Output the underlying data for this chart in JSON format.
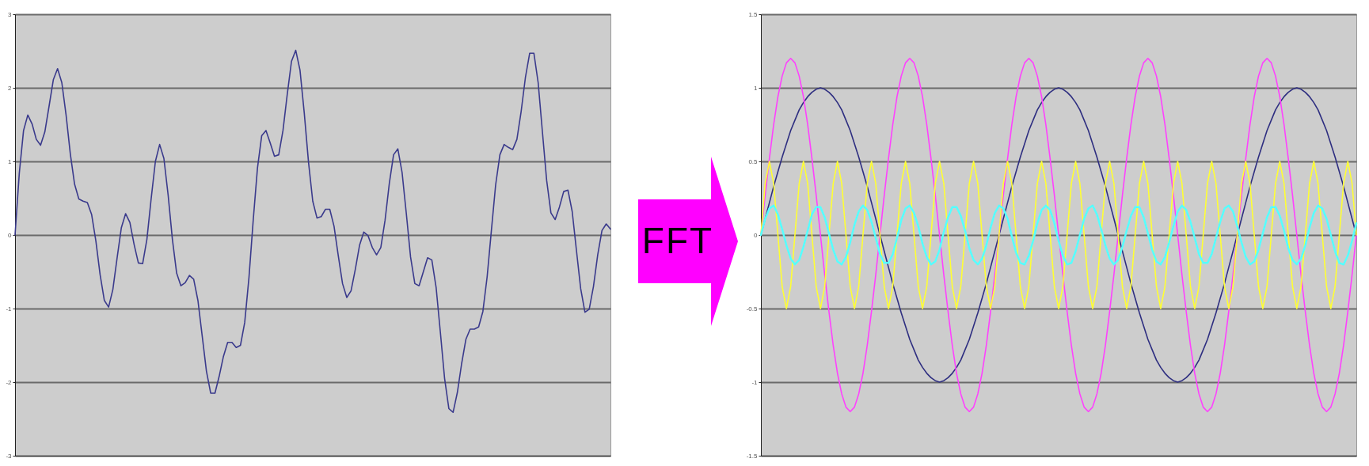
{
  "chart_data": [
    {
      "type": "line",
      "categories": [
        null,
        null,
        null,
        null,
        null,
        null,
        null,
        null,
        null,
        null,
        null,
        null,
        null,
        null,
        null,
        null,
        null,
        null,
        null,
        null,
        null,
        null,
        null,
        null,
        null,
        null,
        null,
        null,
        null,
        null,
        null,
        null,
        null,
        null,
        null,
        null,
        null,
        null,
        null,
        null,
        null,
        null,
        null,
        null,
        null,
        null,
        null,
        null,
        null,
        null,
        null,
        null,
        null,
        null,
        null,
        null,
        null,
        null,
        null,
        null,
        null,
        null,
        null,
        null,
        null,
        null,
        null,
        null,
        null,
        null,
        null,
        null,
        null,
        null,
        null,
        null,
        null,
        null,
        null,
        null,
        null,
        null,
        null,
        null,
        null,
        null,
        null,
        null,
        null,
        null,
        null,
        null,
        null,
        null,
        null,
        null,
        null,
        null,
        null,
        null,
        null,
        null,
        null,
        null,
        null,
        null,
        null,
        null,
        null,
        null,
        null,
        null,
        null,
        null,
        null,
        null,
        null,
        null,
        null,
        null,
        null,
        null,
        null,
        null,
        null,
        null,
        null,
        null,
        null,
        null,
        null,
        null,
        null,
        null,
        null,
        null,
        null,
        null,
        null,
        null,
        null
      ],
      "ylim": [
        -3,
        3
      ],
      "yticks": [
        -3,
        -2,
        -1,
        0,
        1,
        2,
        3
      ],
      "grid": "y",
      "annotations": [
        "FFT"
      ],
      "series": [
        {
          "color": "#3a3a8c",
          "values": [
            0,
            0.84,
            1.42,
            1.63,
            1.51,
            1.3,
            1.22,
            1.4,
            1.75,
            2.11,
            2.26,
            2.07,
            1.63,
            1.1,
            0.69,
            0.49,
            0.46,
            0.44,
            0.28,
            -0.08,
            -0.54,
            -0.89,
            -0.98,
            -0.74,
            -0.31,
            0.1,
            0.29,
            0.17,
            -0.13,
            -0.38,
            -0.39,
            -0.06,
            0.49,
            1,
            1.23,
            1.04,
            0.54,
            -0.06,
            -0.52,
            -0.69,
            -0.65,
            -0.55,
            -0.6,
            -0.89,
            -1.37,
            -1.85,
            -2.15,
            -2.15,
            -1.92,
            -1.65,
            -1.46,
            -1.46,
            -1.53,
            -1.5,
            -1.19,
            -0.58,
            0.2,
            0.91,
            1.35,
            1.42,
            1.25,
            1.07,
            1.09,
            1.42,
            1.91,
            2.36,
            2.51,
            2.24,
            1.66,
            0.99,
            0.46,
            0.23,
            0.25,
            0.35,
            0.35,
            0.12,
            -0.28,
            -0.66,
            -0.85,
            -0.76,
            -0.47,
            -0.14,
            0.04,
            -0.01,
            -0.17,
            -0.27,
            -0.17,
            0.2,
            0.7,
            1.09,
            1.17,
            0.85,
            0.29,
            -0.3,
            -0.66,
            -0.69,
            -0.5,
            -0.31,
            -0.34,
            -0.71,
            -1.32,
            -1.95,
            -2.36,
            -2.41,
            -2.14,
            -1.75,
            -1.42,
            -1.28,
            -1.28,
            -1.25,
            -1.04,
            -0.57,
            0.06,
            0.68,
            1.09,
            1.23,
            1.19,
            1.16,
            1.3,
            1.68,
            2.14,
            2.47,
            2.47,
            2.07,
            1.4,
            0.74,
            0.3,
            0.21,
            0.38,
            0.59,
            0.61,
            0.32,
            -0.21,
            -0.73,
            -1.05,
            -1.01,
            -0.7,
            -0.27,
            0.06,
            0.15,
            0.08
          ]
        }
      ]
    },
    {
      "type": "line",
      "categories": [
        null,
        null,
        null,
        null,
        null,
        null,
        null,
        null,
        null,
        null,
        null,
        null,
        null,
        null,
        null,
        null,
        null,
        null,
        null,
        null,
        null,
        null,
        null,
        null,
        null,
        null,
        null,
        null,
        null,
        null,
        null,
        null,
        null,
        null,
        null,
        null,
        null,
        null,
        null,
        null,
        null,
        null,
        null,
        null,
        null,
        null,
        null,
        null,
        null,
        null,
        null,
        null,
        null,
        null,
        null,
        null,
        null,
        null,
        null,
        null,
        null,
        null,
        null,
        null,
        null,
        null,
        null,
        null,
        null,
        null,
        null,
        null,
        null,
        null,
        null,
        null,
        null,
        null,
        null,
        null,
        null,
        null,
        null,
        null,
        null,
        null,
        null,
        null,
        null,
        null,
        null,
        null,
        null,
        null,
        null,
        null,
        null,
        null,
        null,
        null,
        null,
        null,
        null,
        null,
        null,
        null,
        null,
        null,
        null,
        null,
        null,
        null,
        null,
        null,
        null,
        null,
        null,
        null,
        null,
        null,
        null,
        null,
        null,
        null,
        null,
        null,
        null,
        null,
        null,
        null,
        null,
        null,
        null,
        null,
        null,
        null,
        null,
        null,
        null,
        null,
        null
      ],
      "ylim": [
        -1.5,
        1.5
      ],
      "yticks": [
        -1.5,
        -1,
        -0.5,
        0,
        0.5,
        1,
        1.5
      ],
      "grid": "y",
      "series": [
        {
          "color": "#2e2e80",
          "values": [
            0,
            0.11,
            0.22,
            0.33,
            0.43,
            0.53,
            0.62,
            0.71,
            0.78,
            0.85,
            0.9,
            0.94,
            0.97,
            0.99,
            1,
            0.99,
            0.97,
            0.94,
            0.9,
            0.85,
            0.78,
            0.71,
            0.62,
            0.53,
            0.43,
            0.33,
            0.22,
            0.11,
            0,
            -0.11,
            -0.22,
            -0.33,
            -0.43,
            -0.53,
            -0.62,
            -0.71,
            -0.78,
            -0.85,
            -0.9,
            -0.94,
            -0.97,
            -0.99,
            -1,
            -0.99,
            -0.97,
            -0.94,
            -0.9,
            -0.85,
            -0.78,
            -0.71,
            -0.62,
            -0.53,
            -0.43,
            -0.33,
            -0.22,
            -0.11,
            0,
            0.11,
            0.22,
            0.33,
            0.43,
            0.53,
            0.62,
            0.71,
            0.78,
            0.85,
            0.9,
            0.94,
            0.97,
            0.99,
            1,
            0.99,
            0.97,
            0.94,
            0.9,
            0.85,
            0.78,
            0.71,
            0.62,
            0.53,
            0.43,
            0.33,
            0.22,
            0.11,
            0,
            -0.11,
            -0.22,
            -0.33,
            -0.43,
            -0.53,
            -0.62,
            -0.71,
            -0.78,
            -0.85,
            -0.9,
            -0.94,
            -0.97,
            -0.99,
            -1,
            -0.99,
            -0.97,
            -0.94,
            -0.9,
            -0.85,
            -0.78,
            -0.71,
            -0.62,
            -0.53,
            -0.43,
            -0.33,
            -0.22,
            -0.11,
            0,
            0.11,
            0.22,
            0.33,
            0.43,
            0.53,
            0.62,
            0.71,
            0.78,
            0.85,
            0.9,
            0.94,
            0.97,
            0.99,
            1,
            0.99,
            0.97,
            0.94,
            0.9,
            0.85,
            0.78,
            0.71,
            0.62,
            0.53,
            0.43,
            0.33,
            0.22,
            0.11,
            0
          ]
        },
        {
          "color": "#ff40ff",
          "values": [
            0,
            0.27,
            0.52,
            0.75,
            0.94,
            1.08,
            1.17,
            1.2,
            1.17,
            1.08,
            0.94,
            0.75,
            0.52,
            0.27,
            0,
            -0.27,
            -0.52,
            -0.75,
            -0.94,
            -1.08,
            -1.17,
            -1.2,
            -1.17,
            -1.08,
            -0.94,
            -0.75,
            -0.52,
            -0.27,
            0,
            0.27,
            0.52,
            0.75,
            0.94,
            1.08,
            1.17,
            1.2,
            1.17,
            1.08,
            0.94,
            0.75,
            0.52,
            0.27,
            0,
            -0.27,
            -0.52,
            -0.75,
            -0.94,
            -1.08,
            -1.17,
            -1.2,
            -1.17,
            -1.08,
            -0.94,
            -0.75,
            -0.52,
            -0.27,
            0,
            0.27,
            0.52,
            0.75,
            0.94,
            1.08,
            1.17,
            1.2,
            1.17,
            1.08,
            0.94,
            0.75,
            0.52,
            0.27,
            0,
            -0.27,
            -0.52,
            -0.75,
            -0.94,
            -1.08,
            -1.17,
            -1.2,
            -1.17,
            -1.08,
            -0.94,
            -0.75,
            -0.52,
            -0.27,
            0,
            0.27,
            0.52,
            0.75,
            0.94,
            1.08,
            1.17,
            1.2,
            1.17,
            1.08,
            0.94,
            0.75,
            0.52,
            0.27,
            0,
            -0.27,
            -0.52,
            -0.75,
            -0.94,
            -1.08,
            -1.17,
            -1.2,
            -1.17,
            -1.08,
            -0.94,
            -0.75,
            -0.52,
            -0.27,
            0,
            0.27,
            0.52,
            0.75,
            0.94,
            1.08,
            1.17,
            1.2,
            1.17,
            1.08,
            0.94,
            0.75,
            0.52,
            0.27,
            0,
            -0.27,
            -0.52,
            -0.75,
            -0.94,
            -1.08,
            -1.17,
            -1.2,
            -1.17,
            -1.08,
            -0.94,
            -0.75,
            -0.52,
            -0.27,
            0
          ]
        },
        {
          "color": "#ffff33",
          "values": [
            0,
            0.35,
            0.5,
            0.35,
            0,
            -0.35,
            -0.5,
            -0.35,
            0,
            0.35,
            0.5,
            0.35,
            0,
            -0.35,
            -0.5,
            -0.35,
            0,
            0.35,
            0.5,
            0.35,
            0,
            -0.35,
            -0.5,
            -0.35,
            0,
            0.35,
            0.5,
            0.35,
            0,
            -0.35,
            -0.5,
            -0.35,
            0,
            0.35,
            0.5,
            0.35,
            0,
            -0.35,
            -0.5,
            -0.35,
            0,
            0.35,
            0.5,
            0.35,
            0,
            -0.35,
            -0.5,
            -0.35,
            0,
            0.35,
            0.5,
            0.35,
            0,
            -0.35,
            -0.5,
            -0.35,
            0,
            0.35,
            0.5,
            0.35,
            0,
            -0.35,
            -0.5,
            -0.35,
            0,
            0.35,
            0.5,
            0.35,
            0,
            -0.35,
            -0.5,
            -0.35,
            0,
            0.35,
            0.5,
            0.35,
            0,
            -0.35,
            -0.5,
            -0.35,
            0,
            0.35,
            0.5,
            0.35,
            0,
            -0.35,
            -0.5,
            -0.35,
            0,
            0.35,
            0.5,
            0.35,
            0,
            -0.35,
            -0.5,
            -0.35,
            0,
            0.35,
            0.5,
            0.35,
            0,
            -0.35,
            -0.5,
            -0.35,
            0,
            0.35,
            0.5,
            0.35,
            0,
            -0.35,
            -0.5,
            -0.35,
            0,
            0.35,
            0.5,
            0.35,
            0,
            -0.35,
            -0.5,
            -0.35,
            0,
            0.35,
            0.5,
            0.35,
            0,
            -0.35,
            -0.5,
            -0.35,
            0,
            0.35,
            0.5,
            0.35,
            0,
            -0.35,
            -0.5,
            -0.35,
            0,
            0.35,
            0.5,
            0.35,
            0
          ]
        },
        {
          "color": "#55ffff",
          "values": [
            0,
            0.11,
            0.18,
            0.2,
            0.14,
            0.04,
            -0.07,
            -0.16,
            -0.2,
            -0.17,
            -0.08,
            0.03,
            0.14,
            0.19,
            0.19,
            0.12,
            0.01,
            -0.1,
            -0.18,
            -0.2,
            -0.15,
            -0.05,
            0.07,
            0.16,
            0.2,
            0.17,
            0.09,
            -0.02,
            -0.13,
            -0.19,
            -0.19,
            -0.13,
            -0.02,
            0.1,
            0.18,
            0.2,
            0.15,
            0.06,
            -0.06,
            -0.15,
            -0.2,
            -0.18,
            -0.1,
            0.02,
            0.12,
            0.19,
            0.19,
            0.13,
            0.03,
            -0.09,
            -0.17,
            -0.2,
            -0.16,
            -0.07,
            0.05,
            0.15,
            0.2,
            0.18,
            0.11,
            -0.01,
            -0.12,
            -0.19,
            -0.2,
            -0.14,
            -0.04,
            0.08,
            0.17,
            0.2,
            0.17,
            0.08,
            -0.04,
            -0.14,
            -0.2,
            -0.19,
            -0.11,
            0,
            0.11,
            0.18,
            0.2,
            0.14,
            0.04,
            -0.07,
            -0.16,
            -0.2,
            -0.17,
            -0.08,
            0.03,
            0.13,
            0.19,
            0.19,
            0.12,
            0.01,
            -0.1,
            -0.18,
            -0.2,
            -0.15,
            -0.05,
            0.06,
            0.16,
            0.2,
            0.17,
            0.09,
            -0.02,
            -0.13,
            -0.19,
            -0.19,
            -0.13,
            -0.02,
            0.09,
            0.18,
            0.2,
            0.16,
            0.06,
            -0.05,
            -0.15,
            -0.2,
            -0.18,
            -0.1,
            0.01,
            0.12,
            0.19,
            0.19,
            0.13,
            0.03,
            -0.09,
            -0.17,
            -0.2,
            -0.16,
            -0.07,
            0.05,
            0.15,
            0.2,
            0.18,
            0.11,
            0,
            -0.11,
            -0.19,
            -0.2,
            -0.14,
            -0.04,
            0.08
          ]
        }
      ]
    }
  ]
}
